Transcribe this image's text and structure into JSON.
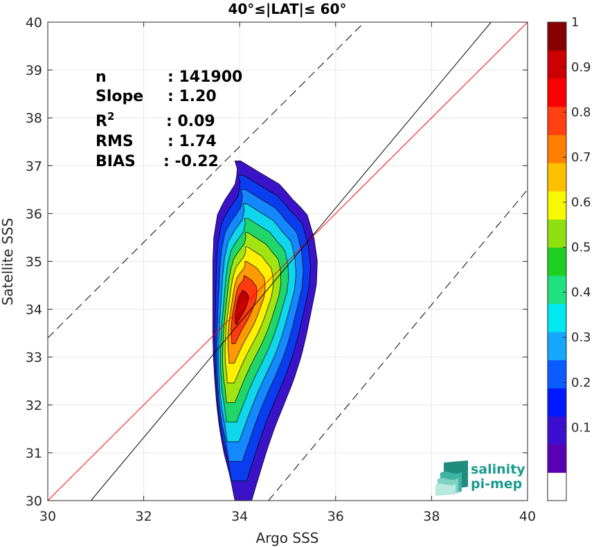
{
  "chart_data": {
    "type": "contour",
    "title": "40°≤|LAT|≤ 60°",
    "xlabel": "Argo SSS",
    "ylabel": "Satellite SSS",
    "xlim": [
      30,
      40
    ],
    "ylim": [
      30,
      40
    ],
    "xticks": [
      "30",
      "32",
      "34",
      "36",
      "38",
      "40"
    ],
    "yticks": [
      "30",
      "31",
      "32",
      "33",
      "34",
      "35",
      "36",
      "37",
      "38",
      "39",
      "40"
    ],
    "grid": true,
    "stats": [
      {
        "key": "n",
        "value": ": 141900"
      },
      {
        "key": "Slope",
        "value": ": 1.20"
      },
      {
        "key": "R",
        "sup": "2",
        "value": ": 0.09"
      },
      {
        "key": "RMS",
        "value": ": 1.74"
      },
      {
        "key": "BIAS",
        "value": ": -0.22"
      }
    ],
    "lines": [
      {
        "name": "one-to-one",
        "color": "#ff0000",
        "points": [
          [
            30,
            30
          ],
          [
            40,
            40
          ]
        ]
      },
      {
        "name": "regression",
        "color": "#000000",
        "points": [
          [
            30.9,
            30
          ],
          [
            39.24,
            40
          ]
        ]
      },
      {
        "name": "upper-bound",
        "color": "#000000",
        "dashed": true,
        "points": [
          [
            30,
            33.4
          ],
          [
            36.6,
            40
          ]
        ]
      },
      {
        "name": "lower-bound",
        "color": "#000000",
        "dashed": true,
        "points": [
          [
            34.6,
            30
          ],
          [
            40,
            36.5
          ]
        ]
      }
    ],
    "density_center": [
      34.0,
      34.1
    ],
    "density_levels": [
      0.05,
      0.15,
      0.25,
      0.35,
      0.45,
      0.55,
      0.65,
      0.75,
      0.85,
      0.95
    ],
    "colorbar": {
      "ticks": [
        "0.1",
        "0.2",
        "0.3",
        "0.4",
        "0.5",
        "0.6",
        "0.7",
        "0.8",
        "0.9",
        "1"
      ],
      "colors": [
        "#ffffff",
        "#5a00b4",
        "#3b0fd0",
        "#0018ff",
        "#0a5cff",
        "#16a7ff",
        "#00e8f0",
        "#20e080",
        "#20d020",
        "#90e010",
        "#f8f800",
        "#ffc000",
        "#ff8000",
        "#ff4010",
        "#ff0000",
        "#cc0000",
        "#880000"
      ]
    },
    "contour_fills": [
      "#3a12c8",
      "#0a3cf0",
      "#1488ff",
      "#10d6ec",
      "#20d56a",
      "#a2e412",
      "#fff000",
      "#ff9a00",
      "#ff3a10",
      "#c00000"
    ]
  },
  "logo": {
    "line1": "salinity",
    "line2": "pi-mep"
  }
}
